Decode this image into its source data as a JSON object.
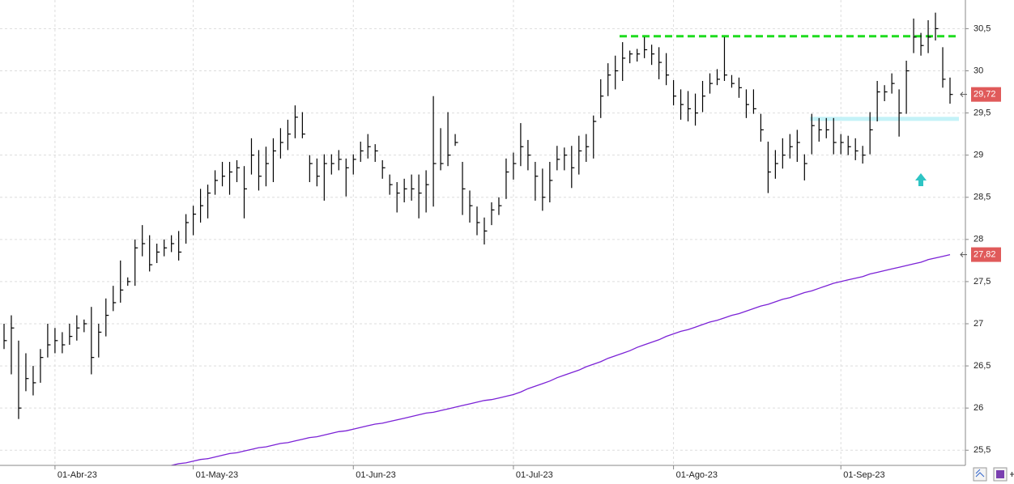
{
  "chart_data": {
    "type": "ohlc",
    "categories": [
      null,
      null,
      null,
      null,
      null,
      null,
      null,
      "01-Abr-23",
      null,
      null,
      null,
      null,
      null,
      null,
      null,
      null,
      null,
      null,
      null,
      null,
      null,
      null,
      null,
      null,
      null,
      null,
      "01-May-23",
      null,
      null,
      null,
      null,
      null,
      null,
      null,
      null,
      null,
      null,
      null,
      null,
      null,
      null,
      null,
      null,
      null,
      null,
      null,
      null,
      null,
      "01-Jun-23",
      null,
      null,
      null,
      null,
      null,
      null,
      null,
      null,
      null,
      null,
      null,
      null,
      null,
      null,
      null,
      null,
      null,
      null,
      null,
      null,
      null,
      "01-Jul-23",
      null,
      null,
      null,
      null,
      null,
      null,
      null,
      null,
      null,
      null,
      null,
      null,
      null,
      null,
      null,
      null,
      null,
      null,
      null,
      null,
      null,
      "01-Ago-23",
      null,
      null,
      null,
      null,
      null,
      null,
      null,
      null,
      null,
      null,
      null,
      null,
      null,
      null,
      null,
      null,
      null,
      null,
      null,
      null,
      null,
      null,
      "01-Sep-23",
      null,
      null,
      null,
      null,
      null,
      null,
      null,
      null,
      null,
      null,
      null,
      null,
      null,
      null,
      null
    ],
    "high": [
      27.0,
      27.1,
      26.8,
      26.65,
      26.5,
      26.7,
      27.0,
      26.95,
      26.9,
      27.0,
      27.1,
      27.05,
      27.2,
      27.0,
      27.3,
      27.45,
      27.75,
      27.55,
      28.0,
      28.17,
      28.05,
      27.95,
      28.0,
      28.05,
      28.1,
      28.3,
      28.4,
      28.6,
      28.65,
      28.82,
      28.92,
      28.92,
      28.94,
      28.87,
      29.2,
      29.06,
      29.1,
      29.2,
      29.32,
      29.42,
      29.59,
      29.51,
      29.0,
      28.96,
      29.01,
      29.01,
      29.06,
      28.96,
      29.01,
      29.16,
      29.25,
      29.13,
      28.94,
      28.77,
      28.68,
      28.72,
      28.77,
      28.77,
      28.82,
      29.7,
      29.32,
      29.51,
      29.25,
      28.92,
      28.58,
      28.39,
      28.26,
      28.44,
      28.5,
      28.96,
      29.03,
      29.38,
      29.18,
      28.92,
      28.84,
      28.92,
      29.11,
      29.09,
      29.11,
      29.23,
      29.25,
      29.47,
      29.9,
      30.09,
      30.18,
      30.34,
      30.24,
      30.26,
      30.4,
      30.31,
      30.28,
      30.21,
      29.89,
      29.78,
      29.76,
      29.73,
      29.88,
      29.97,
      30.02,
      30.4,
      29.95,
      29.92,
      29.78,
      29.78,
      29.49,
      29.16,
      29.06,
      29.2,
      29.25,
      29.3,
      29.01,
      29.49,
      29.44,
      29.44,
      29.44,
      29.25,
      29.23,
      29.2,
      29.11,
      29.51,
      29.88,
      29.83,
      29.97,
      29.78,
      30.12,
      30.62,
      30.45,
      30.6,
      30.69,
      30.28,
      29.92
    ],
    "low": [
      26.7,
      26.4,
      25.87,
      26.2,
      26.15,
      26.3,
      26.6,
      26.65,
      26.65,
      26.75,
      26.8,
      26.9,
      26.4,
      26.6,
      26.85,
      27.15,
      27.25,
      27.45,
      27.45,
      27.8,
      27.62,
      27.72,
      27.8,
      27.85,
      27.75,
      27.95,
      28.05,
      28.2,
      28.25,
      28.53,
      28.63,
      28.53,
      28.68,
      28.25,
      28.77,
      28.58,
      28.63,
      28.68,
      28.96,
      29.06,
      29.2,
      29.2,
      28.68,
      28.63,
      28.46,
      28.77,
      28.82,
      28.51,
      28.77,
      28.92,
      28.96,
      28.92,
      28.72,
      28.53,
      28.32,
      28.44,
      28.46,
      28.25,
      28.32,
      28.39,
      28.82,
      28.87,
      29.11,
      28.29,
      28.2,
      28.05,
      27.94,
      28.17,
      28.29,
      28.48,
      28.71,
      28.87,
      28.82,
      28.46,
      28.34,
      28.44,
      28.82,
      28.82,
      28.61,
      28.77,
      28.92,
      28.96,
      29.44,
      29.7,
      29.78,
      29.88,
      30.09,
      30.11,
      30.15,
      30.07,
      29.9,
      29.83,
      29.59,
      29.42,
      29.4,
      29.35,
      29.51,
      29.73,
      29.83,
      29.88,
      29.8,
      29.68,
      29.44,
      29.49,
      29.16,
      28.55,
      28.72,
      28.84,
      28.96,
      28.92,
      28.7,
      29.01,
      29.16,
      29.2,
      29.01,
      29.01,
      29.0,
      28.94,
      28.9,
      29.01,
      29.4,
      29.64,
      29.73,
      29.22,
      29.49,
      30.21,
      30.18,
      30.21,
      30.36,
      29.8,
      29.61
    ],
    "close": [
      26.8,
      26.95,
      26.0,
      26.35,
      26.3,
      26.6,
      26.75,
      26.8,
      26.75,
      26.85,
      26.95,
      27.0,
      26.6,
      26.9,
      27.1,
      27.25,
      27.4,
      27.5,
      27.9,
      27.95,
      27.7,
      27.85,
      27.9,
      27.95,
      27.85,
      28.2,
      28.3,
      28.4,
      28.55,
      28.7,
      28.75,
      28.8,
      28.85,
      28.6,
      29.0,
      28.75,
      28.9,
      29.05,
      29.15,
      29.25,
      29.45,
      29.25,
      28.9,
      28.75,
      28.9,
      28.9,
      28.95,
      28.85,
      28.95,
      29.05,
      29.1,
      29.05,
      28.85,
      28.65,
      28.55,
      28.6,
      28.6,
      28.55,
      28.65,
      28.9,
      28.9,
      29.0,
      29.15,
      28.6,
      28.4,
      28.2,
      28.1,
      28.35,
      28.4,
      28.8,
      28.9,
      29.1,
      29.0,
      28.75,
      28.5,
      28.7,
      28.95,
      29.0,
      28.85,
      29.05,
      29.1,
      29.4,
      29.7,
      29.95,
      30.0,
      30.15,
      30.2,
      30.2,
      30.25,
      30.2,
      30.1,
      29.95,
      29.7,
      29.6,
      29.55,
      29.5,
      29.7,
      29.85,
      29.9,
      29.95,
      29.85,
      29.8,
      29.6,
      29.55,
      29.3,
      28.8,
      28.9,
      29.0,
      29.1,
      29.15,
      28.9,
      29.35,
      29.3,
      29.3,
      29.15,
      29.15,
      29.1,
      29.05,
      29.0,
      29.3,
      29.75,
      29.75,
      29.85,
      29.5,
      30.0,
      30.4,
      30.3,
      30.4,
      30.5,
      29.9,
      29.72
    ],
    "color": "#000000",
    "overlay": {
      "type": "line",
      "color": "#7b22d6",
      "values": [
        null,
        null,
        null,
        null,
        null,
        null,
        null,
        null,
        null,
        null,
        null,
        null,
        null,
        null,
        null,
        null,
        null,
        null,
        null,
        null,
        null,
        null,
        null,
        25.32,
        25.34,
        25.35,
        25.37,
        25.39,
        25.4,
        25.42,
        25.44,
        25.46,
        25.47,
        25.49,
        25.51,
        25.53,
        25.54,
        25.56,
        25.58,
        25.59,
        25.61,
        25.63,
        25.65,
        25.66,
        25.68,
        25.7,
        25.72,
        25.73,
        25.75,
        25.77,
        25.79,
        25.81,
        25.82,
        25.84,
        25.86,
        25.88,
        25.9,
        25.92,
        25.94,
        25.95,
        25.97,
        25.99,
        26.01,
        26.03,
        26.05,
        26.07,
        26.09,
        26.1,
        26.12,
        26.14,
        26.16,
        26.19,
        26.23,
        26.26,
        26.29,
        26.32,
        26.36,
        26.39,
        26.42,
        26.45,
        26.49,
        26.52,
        26.55,
        26.59,
        26.62,
        26.65,
        26.68,
        26.72,
        26.75,
        26.78,
        26.81,
        26.85,
        26.88,
        26.91,
        26.93,
        26.96,
        26.99,
        27.02,
        27.04,
        27.07,
        27.1,
        27.12,
        27.15,
        27.18,
        27.21,
        27.23,
        27.26,
        27.29,
        27.31,
        27.34,
        27.37,
        27.39,
        27.42,
        27.45,
        27.48,
        27.5,
        27.52,
        27.54,
        27.56,
        27.59,
        27.61,
        27.63,
        27.65,
        27.67,
        27.69,
        27.71,
        27.73,
        27.76,
        27.78,
        27.8,
        27.82
      ]
    },
    "hlines": [
      {
        "value": 30.41,
        "color": "#1edc1e",
        "dashed": true
      },
      {
        "value": 29.43,
        "color": "#c4f2f8",
        "dashed": false
      }
    ],
    "price_labels": [
      {
        "value": 29.72,
        "label": "29,72",
        "color": "#e05a5a"
      },
      {
        "value": 27.82,
        "label": "27,82",
        "color": "#e05a5a"
      }
    ],
    "ylim": [
      25.32,
      30.84
    ],
    "yticks": [
      {
        "value": 25.5,
        "label": "25,5"
      },
      26,
      {
        "value": 26.5,
        "label": "26,5"
      },
      27,
      {
        "value": 27.5,
        "label": "27,5"
      },
      28,
      {
        "value": 28.5,
        "label": "28,5"
      },
      29,
      {
        "value": 29.5,
        "label": "29,5"
      },
      30,
      {
        "value": 30.5,
        "label": "30,5"
      }
    ],
    "grid": true
  }
}
